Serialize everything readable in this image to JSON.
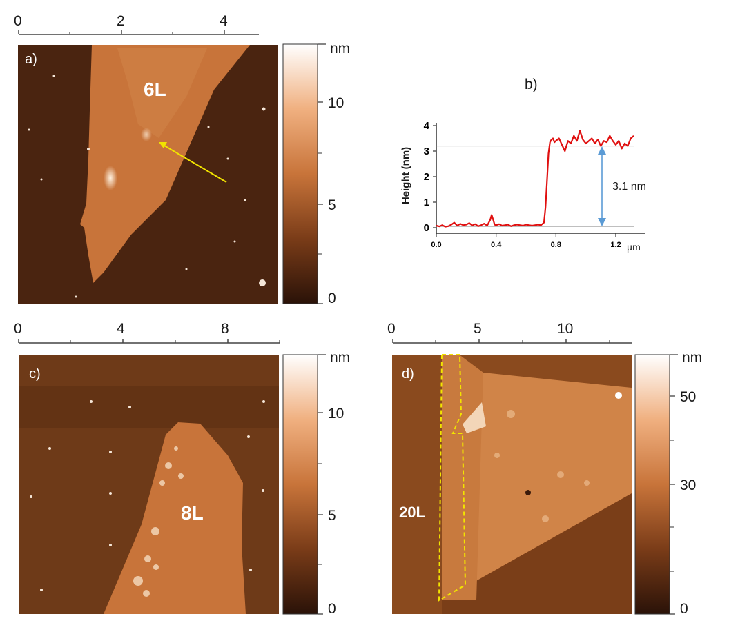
{
  "panels": {
    "a": {
      "label": "a)",
      "flake_label": "6L",
      "top_ticks": [
        "0",
        "2",
        "4"
      ],
      "colorbar": {
        "unit": "nm",
        "ticks": [
          "10",
          "5",
          "0"
        ]
      }
    },
    "b": {
      "label": "b)",
      "value_annotation": "3.1 nm"
    },
    "c": {
      "label": "c)",
      "flake_label": "8L",
      "top_ticks": [
        "0",
        "4",
        "8"
      ],
      "colorbar": {
        "unit": "nm",
        "ticks": [
          "10",
          "5",
          "0"
        ]
      }
    },
    "d": {
      "label": "d)",
      "flake_label": "20L",
      "top_ticks": [
        "0",
        "5",
        "10"
      ],
      "colorbar": {
        "unit": "nm",
        "ticks": [
          "50",
          "30",
          "0"
        ]
      }
    }
  },
  "colors": {
    "substrate_dark": "#4a2410",
    "flake": "#c8743a",
    "profile_line": "#e01010",
    "arrow_yellow": "#f2e400",
    "dim_arrow": "#5b9bd5"
  },
  "chart_data": {
    "type": "line",
    "title": "",
    "xlabel": "µm",
    "ylabel": "Height (nm)",
    "xlim": [
      0,
      1.32
    ],
    "ylim": [
      0,
      4
    ],
    "x_ticks": [
      "0.0",
      "0.4",
      "0.8",
      "1.2"
    ],
    "y_ticks": [
      "0",
      "1",
      "2",
      "3",
      "4"
    ],
    "reference_lines": [
      0.05,
      3.2
    ],
    "series": [
      {
        "x": [
          0.0,
          0.02,
          0.04,
          0.06,
          0.08,
          0.1,
          0.12,
          0.14,
          0.16,
          0.18,
          0.2,
          0.22,
          0.24,
          0.26,
          0.28,
          0.3,
          0.32,
          0.34,
          0.36,
          0.37,
          0.38,
          0.39,
          0.4,
          0.42,
          0.44,
          0.46,
          0.48,
          0.5,
          0.52,
          0.54,
          0.56,
          0.58,
          0.6,
          0.62,
          0.64,
          0.66,
          0.68,
          0.7,
          0.72,
          0.73,
          0.74,
          0.75,
          0.76,
          0.77,
          0.78,
          0.79,
          0.8,
          0.82,
          0.84,
          0.86,
          0.88,
          0.9,
          0.92,
          0.94,
          0.96,
          0.98,
          1.0,
          1.02,
          1.04,
          1.06,
          1.08,
          1.1,
          1.12,
          1.14,
          1.16,
          1.18,
          1.2,
          1.22,
          1.24,
          1.26,
          1.28,
          1.3,
          1.32
        ],
        "y": [
          0.08,
          0.05,
          0.1,
          0.04,
          0.06,
          0.12,
          0.2,
          0.08,
          0.15,
          0.1,
          0.12,
          0.18,
          0.09,
          0.14,
          0.06,
          0.1,
          0.16,
          0.08,
          0.3,
          0.5,
          0.32,
          0.12,
          0.1,
          0.14,
          0.08,
          0.1,
          0.12,
          0.06,
          0.1,
          0.12,
          0.1,
          0.08,
          0.12,
          0.1,
          0.08,
          0.1,
          0.12,
          0.1,
          0.2,
          0.8,
          1.8,
          2.9,
          3.35,
          3.45,
          3.5,
          3.35,
          3.4,
          3.5,
          3.25,
          3.0,
          3.4,
          3.3,
          3.6,
          3.4,
          3.8,
          3.45,
          3.3,
          3.4,
          3.5,
          3.3,
          3.45,
          3.2,
          3.4,
          3.35,
          3.6,
          3.4,
          3.25,
          3.4,
          3.1,
          3.3,
          3.2,
          3.5,
          3.6
        ]
      }
    ]
  }
}
